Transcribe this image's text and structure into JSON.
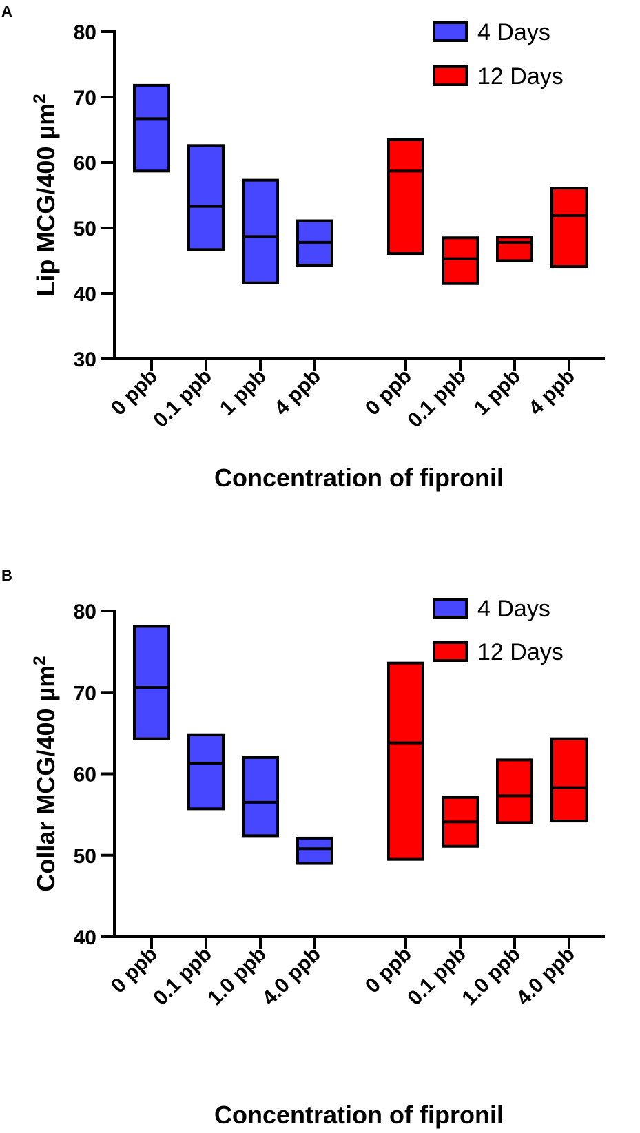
{
  "colors": {
    "series_1": "#4747ff",
    "series_2": "#ff0000"
  },
  "chart_data": [
    {
      "panel": "A",
      "type": "floating-bar",
      "ylabel": "Lip MCG/400 µm",
      "ylabel_sup": "2",
      "xlabel": "Concentration of fipronil",
      "ylim": [
        30,
        80
      ],
      "yticks": [
        30,
        40,
        50,
        60,
        70,
        80
      ],
      "legend_position": "top-right",
      "series": [
        {
          "name": "4 Days",
          "color": "#4747ff",
          "categories": [
            "0 ppb",
            "0.1 ppb",
            "1 ppb",
            "4 ppb"
          ],
          "low": [
            58.7,
            46.7,
            41.6,
            44.3
          ],
          "median": [
            66.7,
            53.3,
            48.7,
            47.8
          ],
          "high": [
            71.8,
            62.6,
            57.3,
            51.1
          ]
        },
        {
          "name": "12 Days",
          "color": "#ff0000",
          "categories": [
            "0 ppb",
            "0.1 ppb",
            "1 ppb",
            "4 ppb"
          ],
          "low": [
            46.1,
            41.5,
            45.0,
            44.1
          ],
          "median": [
            58.7,
            45.3,
            47.8,
            51.9
          ],
          "high": [
            63.5,
            48.5,
            48.6,
            56.1
          ]
        }
      ]
    },
    {
      "panel": "B",
      "type": "floating-bar",
      "ylabel": "Collar MCG/400 µm",
      "ylabel_sup": "2",
      "xlabel": "Concentration of fipronil",
      "ylim": [
        40,
        80
      ],
      "yticks": [
        40,
        50,
        60,
        70,
        80
      ],
      "legend_position": "top-right",
      "series": [
        {
          "name": "4 Days",
          "color": "#4747ff",
          "categories": [
            "0 ppb",
            "0.1 ppb",
            "1.0 ppb",
            "4.0 ppb"
          ],
          "low": [
            64.3,
            55.7,
            52.4,
            49.0
          ],
          "median": [
            70.6,
            61.3,
            56.5,
            50.8
          ],
          "high": [
            78.1,
            64.8,
            62.0,
            52.1
          ]
        },
        {
          "name": "12 Days",
          "color": "#ff0000",
          "categories": [
            "0 ppb",
            "0.1 ppb",
            "1.0 ppb",
            "4.0 ppb"
          ],
          "low": [
            49.5,
            51.1,
            54.0,
            54.2
          ],
          "median": [
            63.8,
            54.1,
            57.3,
            58.3
          ],
          "high": [
            73.6,
            57.1,
            61.7,
            64.3
          ]
        }
      ]
    }
  ]
}
